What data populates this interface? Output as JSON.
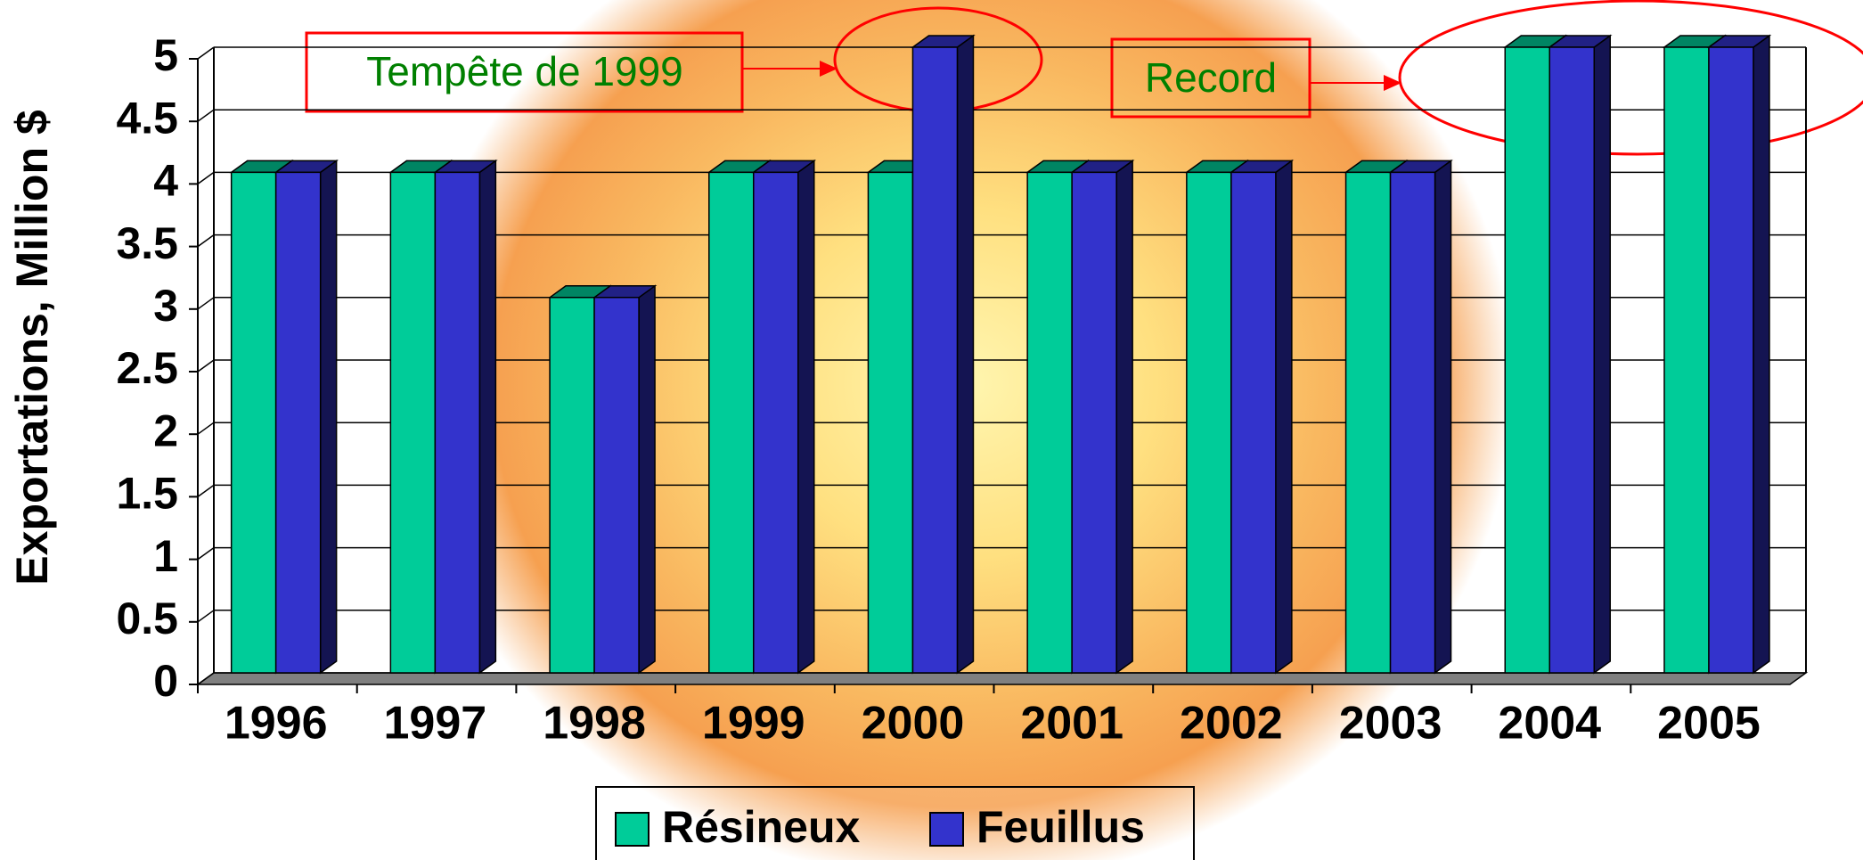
{
  "chart_data": {
    "type": "bar3d",
    "y_label": "Exportations, Million $",
    "categories": [
      "1996",
      "1997",
      "1998",
      "1999",
      "2000",
      "2001",
      "2002",
      "2003",
      "2004",
      "2005"
    ],
    "series": [
      {
        "name": "Résineux",
        "color": "#00cc99",
        "values": [
          4,
          4,
          3,
          4,
          4,
          4,
          4,
          4,
          5,
          5
        ]
      },
      {
        "name": "Feuillus",
        "color": "#3333cc",
        "values": [
          4,
          4,
          3,
          4,
          5,
          4,
          4,
          4,
          5,
          5
        ]
      }
    ],
    "ylim": [
      0,
      5
    ],
    "yticks": [
      0,
      0.5,
      1,
      1.5,
      2,
      2.5,
      3,
      3.5,
      4,
      4.5,
      5
    ],
    "grid": true,
    "legend": "bottom",
    "annotations": [
      "Tempête de 1999",
      "Record"
    ]
  }
}
